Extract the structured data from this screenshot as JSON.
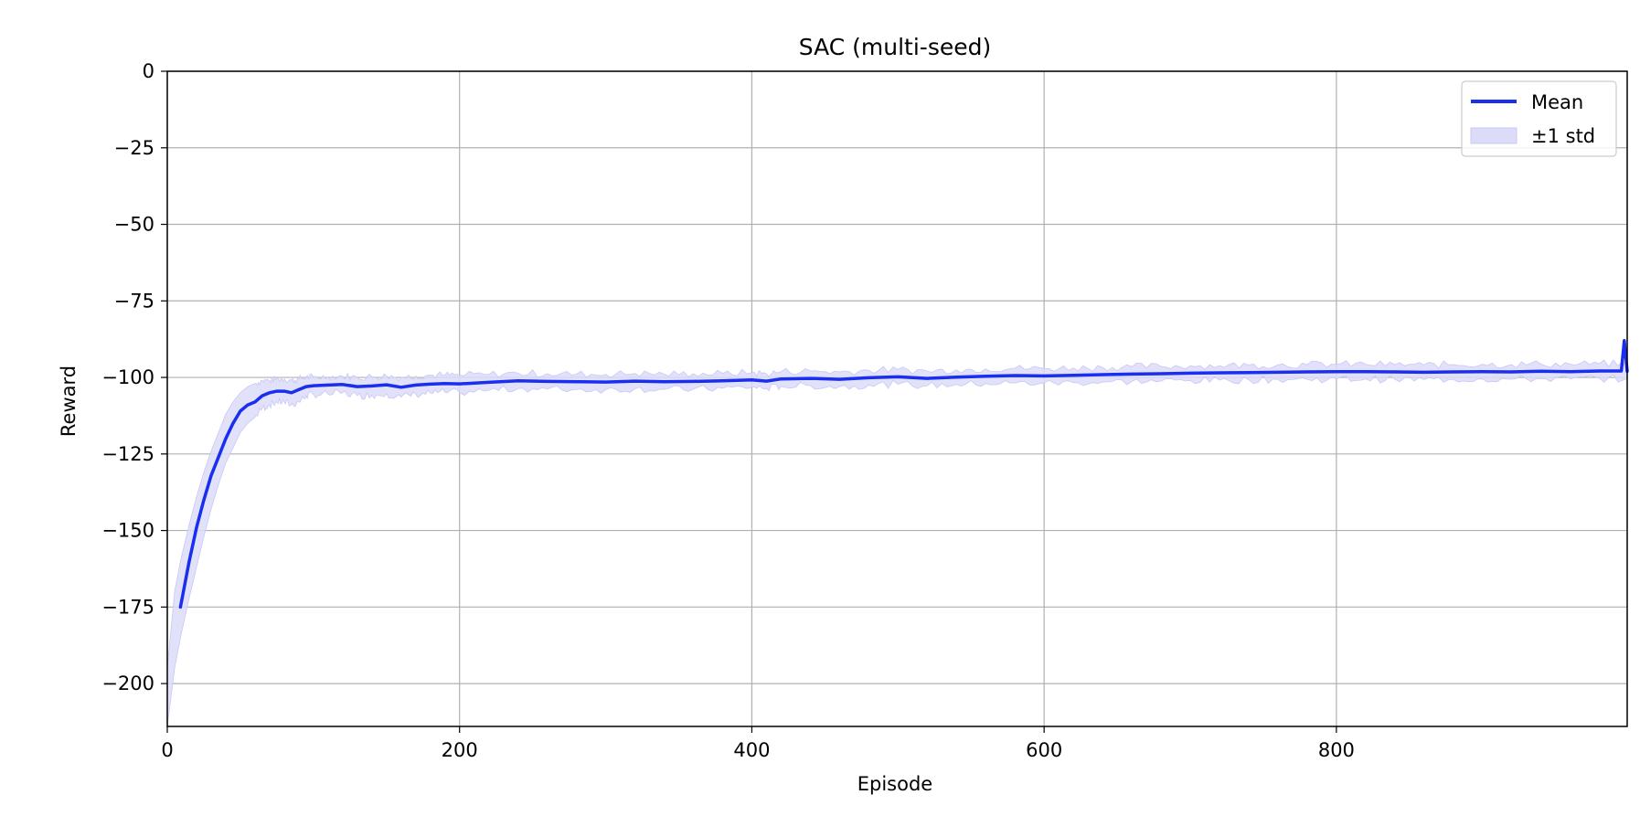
{
  "chart_data": {
    "type": "line",
    "title": "SAC (multi-seed)",
    "xlabel": "Episode",
    "ylabel": "Reward",
    "xlim": [
      0,
      999
    ],
    "ylim": [
      -214,
      0
    ],
    "xticks": [
      0,
      200,
      400,
      600,
      800
    ],
    "xtick_labels": [
      "0",
      "200",
      "400",
      "600",
      "800"
    ],
    "yticks": [
      0,
      -25,
      -50,
      -75,
      -100,
      -125,
      -150,
      -175,
      -200
    ],
    "ytick_labels": [
      "0",
      "−25",
      "−50",
      "−75",
      "−100",
      "−125",
      "−150",
      "−175",
      "−200"
    ],
    "grid": true,
    "legend_position": "top-right",
    "colors": {
      "mean": "#1a2ef0",
      "band": "#dcdcf8",
      "grid": "#b0b0b0"
    },
    "series": [
      {
        "name": "Mean",
        "x": [
          9,
          15,
          20,
          25,
          30,
          35,
          40,
          45,
          50,
          55,
          60,
          65,
          70,
          75,
          80,
          85,
          90,
          95,
          100,
          110,
          120,
          130,
          140,
          150,
          160,
          170,
          180,
          190,
          200,
          220,
          240,
          260,
          280,
          300,
          320,
          340,
          360,
          380,
          400,
          410,
          420,
          440,
          460,
          480,
          500,
          520,
          540,
          560,
          580,
          600,
          620,
          640,
          660,
          680,
          700,
          720,
          740,
          760,
          780,
          800,
          820,
          840,
          860,
          880,
          900,
          920,
          940,
          960,
          980,
          995,
          997,
          999
        ],
        "y": [
          -175,
          -160,
          -149,
          -140,
          -132,
          -126,
          -120,
          -115,
          -111,
          -109,
          -108,
          -106,
          -105,
          -104.5,
          -104.5,
          -105,
          -104,
          -103,
          -102.7,
          -102.5,
          -102.3,
          -103,
          -102.8,
          -102.4,
          -103.2,
          -102.5,
          -102.2,
          -102,
          -102.1,
          -101.6,
          -101.1,
          -101.3,
          -101.4,
          -101.5,
          -101.2,
          -101.4,
          -101.3,
          -101.1,
          -100.8,
          -101.2,
          -100.5,
          -100.3,
          -100.6,
          -100.1,
          -99.8,
          -100.3,
          -99.9,
          -99.6,
          -99.4,
          -99.5,
          -99.3,
          -99.1,
          -98.9,
          -98.8,
          -98.6,
          -98.5,
          -98.4,
          -98.3,
          -98.2,
          -98.1,
          -98.1,
          -98.2,
          -98.3,
          -98.2,
          -98.1,
          -98.2,
          -98.0,
          -98.1,
          -97.9,
          -97.9,
          -88.0,
          -98.0
        ]
      },
      {
        "name": "±1 std",
        "x": [
          0,
          5,
          9,
          15,
          20,
          25,
          30,
          35,
          40,
          45,
          50,
          55,
          60,
          65,
          70,
          75,
          80,
          85,
          90,
          95,
          100,
          110,
          120,
          130,
          140,
          150,
          160,
          170,
          180,
          190,
          200,
          220,
          240,
          260,
          280,
          300,
          320,
          340,
          360,
          380,
          400,
          410,
          420,
          440,
          460,
          480,
          500,
          520,
          540,
          560,
          580,
          600,
          620,
          640,
          660,
          680,
          700,
          720,
          740,
          760,
          780,
          800,
          820,
          840,
          860,
          880,
          900,
          920,
          940,
          960,
          980,
          999
        ],
        "upper": [
          -195,
          -170,
          -160,
          -148,
          -139,
          -131,
          -124,
          -118,
          -112,
          -108,
          -105,
          -103,
          -102,
          -101,
          -101,
          -100.5,
          -100.5,
          -101,
          -100.5,
          -100,
          -99.8,
          -99.8,
          -99.6,
          -100,
          -99.8,
          -99.5,
          -100,
          -99.5,
          -99.3,
          -99.2,
          -99.3,
          -99,
          -98.6,
          -98.8,
          -98.9,
          -99,
          -98.7,
          -98.9,
          -98.8,
          -98.7,
          -98.4,
          -98.8,
          -98.1,
          -97.9,
          -98.2,
          -97.7,
          -97.4,
          -97.9,
          -97.5,
          -97.2,
          -97,
          -97.1,
          -96.9,
          -96.7,
          -96.5,
          -96.4,
          -96.2,
          -96.1,
          -96,
          -95.9,
          -95.8,
          -95.7,
          -95.7,
          -95.8,
          -95.9,
          -95.8,
          -95.7,
          -95.8,
          -95.6,
          -95.7,
          -95.5,
          -95.6
        ],
        "lower": [
          -214,
          -195,
          -185,
          -172,
          -162,
          -152,
          -143,
          -135,
          -128,
          -123,
          -118,
          -115,
          -113,
          -110,
          -109,
          -108,
          -108,
          -109,
          -108,
          -106,
          -105.5,
          -105.5,
          -105,
          -106,
          -105.8,
          -105.3,
          -106.4,
          -105.5,
          -105.1,
          -104.8,
          -104.9,
          -104.2,
          -103.6,
          -103.8,
          -103.9,
          -104,
          -103.7,
          -103.9,
          -103.8,
          -103.5,
          -103.2,
          -103.6,
          -102.9,
          -102.7,
          -103,
          -102.5,
          -102.2,
          -102.7,
          -102.3,
          -102,
          -101.8,
          -101.9,
          -101.7,
          -101.5,
          -101.3,
          -101.2,
          -101,
          -100.9,
          -100.8,
          -100.7,
          -100.6,
          -100.5,
          -100.5,
          -100.6,
          -100.7,
          -100.6,
          -100.5,
          -100.6,
          -100.4,
          -100.5,
          -100.3,
          -100.4
        ]
      }
    ]
  }
}
